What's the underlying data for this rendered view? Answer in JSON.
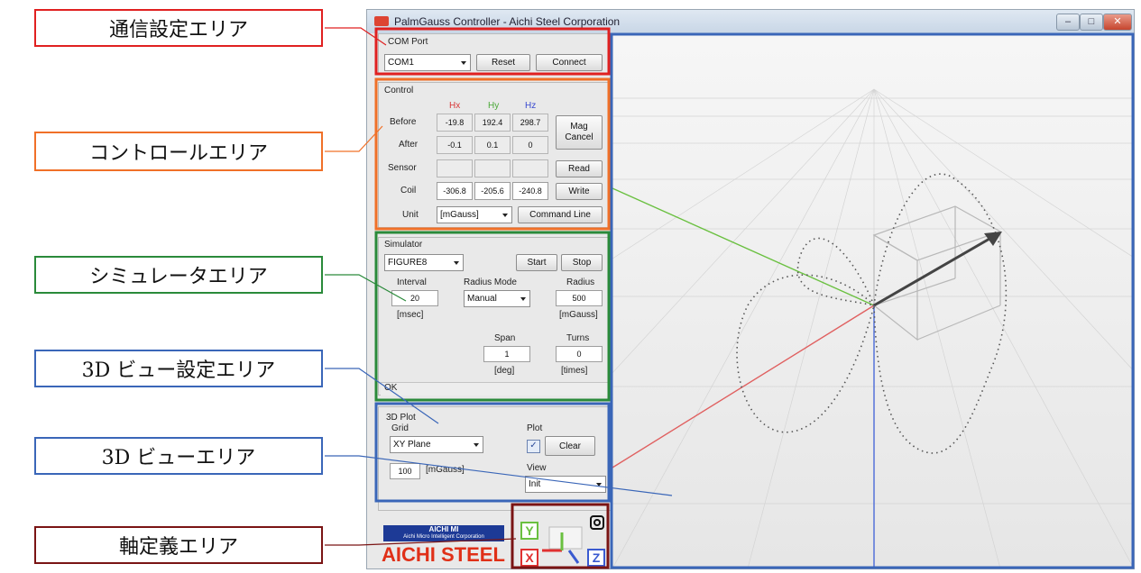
{
  "window": {
    "title": "PalmGauss Controller - Aichi Steel Corporation",
    "controls": [
      "‒",
      "□",
      "✕"
    ]
  },
  "callouts": {
    "comm": "通信設定エリア",
    "control": "コントロールエリア",
    "simulator": "シミュレータエリア",
    "view_settings": "3D ビュー設定エリア",
    "view": "3D ビューエリア",
    "axis": "軸定義エリア"
  },
  "com": {
    "legend": "COM Port",
    "port": "COM1",
    "reset": "Reset",
    "connect": "Connect"
  },
  "control": {
    "legend": "Control",
    "headers": [
      "Hx",
      "Hy",
      "Hz"
    ],
    "before_label": "Before",
    "before": [
      "-19.8",
      "192.4",
      "298.7"
    ],
    "after_label": "After",
    "after": [
      "-0.1",
      "0.1",
      "0"
    ],
    "sensor_label": "Sensor",
    "coil_label": "Coil",
    "coil": [
      "-306.8",
      "-205.6",
      "-240.8"
    ],
    "mag_cancel_1": "Mag",
    "mag_cancel_2": "Cancel",
    "read": "Read",
    "write": "Write",
    "unit_label": "Unit",
    "unit": "[mGauss]",
    "command_line": "Command Line"
  },
  "simulator": {
    "legend": "Simulator",
    "pattern": "FIGURE8",
    "start": "Start",
    "stop": "Stop",
    "interval_label": "Interval",
    "interval": "20",
    "interval_unit": "[msec]",
    "radius_mode_label": "Radius Mode",
    "radius_mode": "Manual",
    "radius_label": "Radius",
    "radius": "500",
    "radius_unit": "[mGauss]",
    "span_label": "Span",
    "span": "1",
    "span_unit": "[deg]",
    "turns_label": "Turns",
    "turns": "0",
    "turns_unit": "[times]",
    "status": "OK"
  },
  "plot3d": {
    "legend": "3D Plot",
    "grid_label": "Grid",
    "grid": "XY Plane",
    "plot_label": "Plot",
    "clear": "Clear",
    "scale": "100",
    "scale_unit": "[mGauss]",
    "view_label": "View",
    "view": "Init"
  },
  "logo": {
    "top": "AICHI MI",
    "sub": "Aichi Micro Intelligent Corporation",
    "main": "AICHI STEEL"
  },
  "axis": {
    "y": "Y",
    "x": "X",
    "z": "Z"
  },
  "colors": {
    "red_box": "#e02020",
    "orange_box": "#f07028",
    "green_box": "#2a8a3a",
    "blue_box": "#3a66b8",
    "darkred_box": "#7a1414",
    "x_axis": "#e05050",
    "y_axis": "#6ac040",
    "z_axis": "#4a6ad8"
  }
}
